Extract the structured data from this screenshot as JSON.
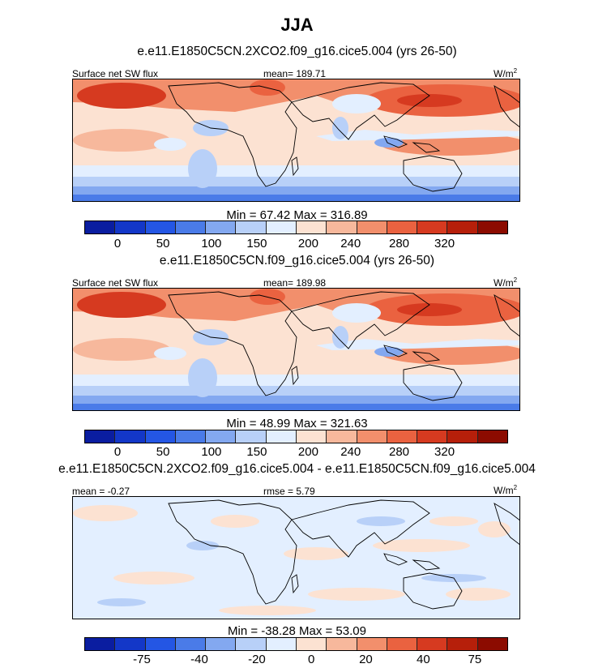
{
  "suptitle": "JJA",
  "colors": {
    "ramp_12": [
      "#0a1da0",
      "#1337c8",
      "#2456e4",
      "#4a7be8",
      "#83a8f0",
      "#b8d0f8",
      "#e3efff",
      "#fce2d2",
      "#f7b89c",
      "#f28f6c",
      "#ea6240",
      "#d63a20",
      "#b61f0a",
      "#8c0b00"
    ],
    "diff_ramp": [
      "#0a1da0",
      "#1337c8",
      "#2456e4",
      "#4a7be8",
      "#83a8f0",
      "#b8d0f8",
      "#e3efff",
      "#fce2d2",
      "#f7b89c",
      "#f28f6c",
      "#ea6240",
      "#d63a20",
      "#b61f0a",
      "#8c0b00"
    ]
  },
  "panels": [
    {
      "title": "e.e11.E1850C5CN.2XCO2.f09_g16.cice5.004 (yrs 26-50)",
      "left_label": "Surface net SW flux",
      "center_label": "mean= 189.71",
      "units": "W/m",
      "units_sup": "2",
      "minmax": "Min =  67.42 Max = 316.89",
      "ticks": [
        "0",
        "50",
        "100",
        "150",
        "200",
        "240",
        "280",
        "320"
      ],
      "field": "abs"
    },
    {
      "title": "e.e11.E1850C5CN.f09_g16.cice5.004 (yrs 26-50)",
      "left_label": "Surface net SW flux",
      "center_label": "mean= 189.98",
      "units": "W/m",
      "units_sup": "2",
      "minmax": "Min =  48.99 Max = 321.63",
      "ticks": [
        "0",
        "50",
        "100",
        "150",
        "200",
        "240",
        "280",
        "320"
      ],
      "field": "abs"
    },
    {
      "title": "e.e11.E1850C5CN.2XCO2.f09_g16.cice5.004 - e.e11.E1850C5CN.f09_g16.cice5.004",
      "left_label": "mean =  -0.27",
      "center_label": "rmse =  5.79",
      "units": "W/m",
      "units_sup": "2",
      "minmax": "Min = -38.28 Max =  53.09",
      "ticks": [
        "-75",
        "-40",
        "-20",
        "0",
        "20",
        "40",
        "75"
      ],
      "field": "diff"
    }
  ],
  "chart_data": [
    {
      "type": "heatmap",
      "title": "e.e11.E1850C5CN.2XCO2.f09_g16.cice5.004 (yrs 26-50)",
      "variable": "Surface net SW flux",
      "units": "W/m2",
      "mean": 189.71,
      "min": 67.42,
      "max": 316.89,
      "colorbar_levels": [
        0,
        50,
        100,
        150,
        200,
        240,
        280,
        320
      ]
    },
    {
      "type": "heatmap",
      "title": "e.e11.E1850C5CN.f09_g16.cice5.004 (yrs 26-50)",
      "variable": "Surface net SW flux",
      "units": "W/m2",
      "mean": 189.98,
      "min": 48.99,
      "max": 321.63,
      "colorbar_levels": [
        0,
        50,
        100,
        150,
        200,
        240,
        280,
        320
      ]
    },
    {
      "type": "heatmap",
      "title": "e.e11.E1850C5CN.2XCO2.f09_g16.cice5.004 - e.e11.E1850C5CN.f09_g16.cice5.004",
      "units": "W/m2",
      "mean": -0.27,
      "rmse": 5.79,
      "min": -38.28,
      "max": 53.09,
      "colorbar_levels": [
        -75,
        -40,
        -20,
        0,
        20,
        40,
        75
      ]
    }
  ]
}
